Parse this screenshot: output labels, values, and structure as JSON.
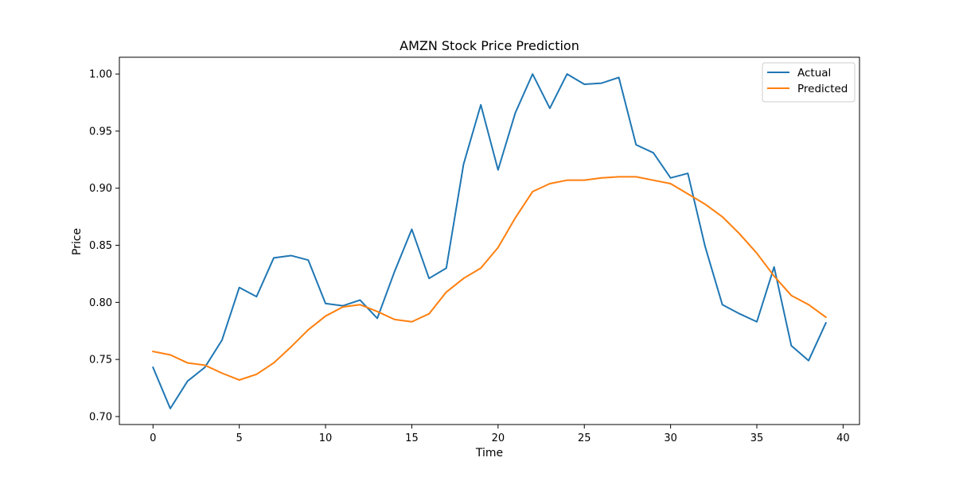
{
  "chart_data": {
    "type": "line",
    "title": "AMZN Stock Price Prediction",
    "xlabel": "Time",
    "ylabel": "Price",
    "xlim": [
      -1.95,
      40.95
    ],
    "ylim": [
      0.693,
      1.0147
    ],
    "xticks": [
      0,
      5,
      10,
      15,
      20,
      25,
      30,
      35,
      40
    ],
    "xtick_labels": [
      "0",
      "5",
      "10",
      "15",
      "20",
      "25",
      "30",
      "35",
      "40"
    ],
    "yticks": [
      0.7,
      0.75,
      0.8,
      0.85,
      0.9,
      0.95,
      1.0
    ],
    "ytick_labels": [
      "0.70",
      "0.75",
      "0.80",
      "0.85",
      "0.90",
      "0.95",
      "1.00"
    ],
    "grid": false,
    "legend_position": "upper right",
    "x": [
      0,
      1,
      2,
      3,
      4,
      5,
      6,
      7,
      8,
      9,
      10,
      11,
      12,
      13,
      14,
      15,
      16,
      17,
      18,
      19,
      20,
      21,
      22,
      23,
      24,
      25,
      26,
      27,
      28,
      29,
      30,
      31,
      32,
      33,
      34,
      35,
      36,
      37,
      38,
      39
    ],
    "series": [
      {
        "name": "Actual",
        "color": "#1f77b4",
        "values": [
          0.743,
          0.707,
          0.731,
          0.743,
          0.767,
          0.813,
          0.805,
          0.839,
          0.841,
          0.837,
          0.799,
          0.797,
          0.802,
          0.786,
          0.827,
          0.864,
          0.821,
          0.83,
          0.921,
          0.973,
          0.916,
          0.966,
          1.0,
          0.97,
          1.0,
          0.991,
          0.992,
          0.997,
          0.938,
          0.931,
          0.909,
          0.913,
          0.849,
          0.798,
          0.79,
          0.783,
          0.831,
          0.762,
          0.749,
          0.782
        ]
      },
      {
        "name": "Predicted",
        "color": "#ff7f0e",
        "values": [
          0.757,
          0.754,
          0.747,
          0.745,
          0.738,
          0.732,
          0.737,
          0.747,
          0.761,
          0.776,
          0.788,
          0.796,
          0.798,
          0.792,
          0.785,
          0.783,
          0.79,
          0.809,
          0.821,
          0.83,
          0.848,
          0.874,
          0.897,
          0.904,
          0.907,
          0.907,
          0.909,
          0.91,
          0.91,
          0.907,
          0.904,
          0.895,
          0.886,
          0.875,
          0.86,
          0.843,
          0.823,
          0.806,
          0.798,
          0.787
        ]
      }
    ]
  }
}
